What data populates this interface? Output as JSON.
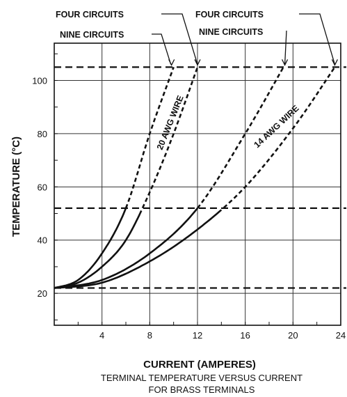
{
  "chart_data": {
    "type": "line",
    "title": "TERMINAL TEMPERATURE VERSUS CURRENT FOR BRASS TERMINALS",
    "caption": [
      "TERMINAL TEMPERATURE VERSUS CURRENT",
      "FOR BRASS TERMINALS"
    ],
    "xlabel": "CURRENT (AMPERES)",
    "ylabel": "TEMPERATURE (°C)",
    "xlim": [
      0,
      24
    ],
    "ylim": [
      8,
      114
    ],
    "xticks": [
      4,
      8,
      12,
      16,
      20,
      24
    ],
    "yticks": [
      20,
      40,
      60,
      80,
      100
    ],
    "grid": true,
    "reference_lines": [
      22,
      52,
      105
    ],
    "wire_labels": [
      "20 AWG WIRE",
      "14 AWG WIRE"
    ],
    "callouts": {
      "four_left": "FOUR CIRCUITS",
      "nine_left": "NINE CIRCUITS",
      "four_right": "FOUR CIRCUITS",
      "nine_right": "NINE CIRCUITS"
    },
    "series": [
      {
        "wire": "20 AWG",
        "circuits": "FOUR",
        "x": [
          0,
          2,
          4,
          6,
          8,
          10
        ],
        "y": [
          22,
          25,
          35,
          52,
          80,
          105
        ]
      },
      {
        "wire": "20 AWG",
        "circuits": "NINE",
        "x": [
          0,
          2,
          4,
          6,
          8,
          10,
          12
        ],
        "y": [
          22,
          24,
          30,
          40,
          58,
          80,
          105
        ]
      },
      {
        "wire": "14 AWG",
        "circuits": "FOUR",
        "x": [
          0,
          4,
          8,
          12,
          16,
          19.2
        ],
        "y": [
          22,
          25,
          35,
          52,
          80,
          105
        ]
      },
      {
        "wire": "14 AWG",
        "circuits": "NINE",
        "x": [
          0,
          4,
          8,
          12,
          16,
          20,
          23.5
        ],
        "y": [
          22,
          24,
          32,
          44,
          60,
          82,
          105
        ]
      }
    ]
  }
}
